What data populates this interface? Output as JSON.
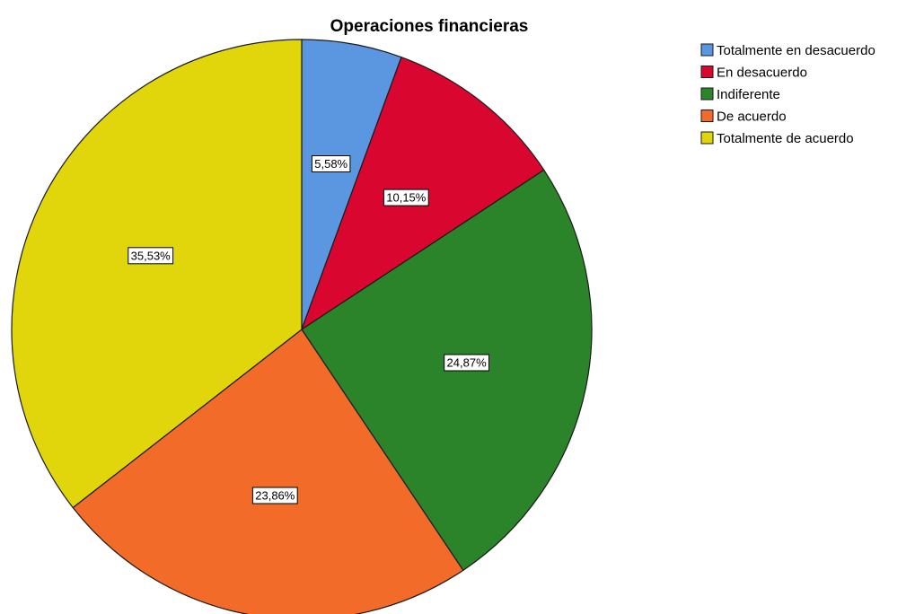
{
  "chart_data": {
    "type": "pie",
    "title": "Operaciones financieras",
    "categories": [
      "Totalmente en desacuerdo",
      "En desacuerdo",
      "Indiferente",
      "De acuerdo",
      "Totalmente de acuerdo"
    ],
    "values": [
      5.58,
      10.15,
      24.87,
      23.86,
      35.53
    ],
    "labels": [
      "5,58%",
      "10,15%",
      "24,87%",
      "23,86%",
      "35,53%"
    ],
    "colors": [
      "#5b97e0",
      "#d9072f",
      "#2b8429",
      "#f26b28",
      "#e1d60b"
    ],
    "legend_position": "top-right",
    "start_angle": "12 o'clock",
    "direction": "clockwise"
  }
}
